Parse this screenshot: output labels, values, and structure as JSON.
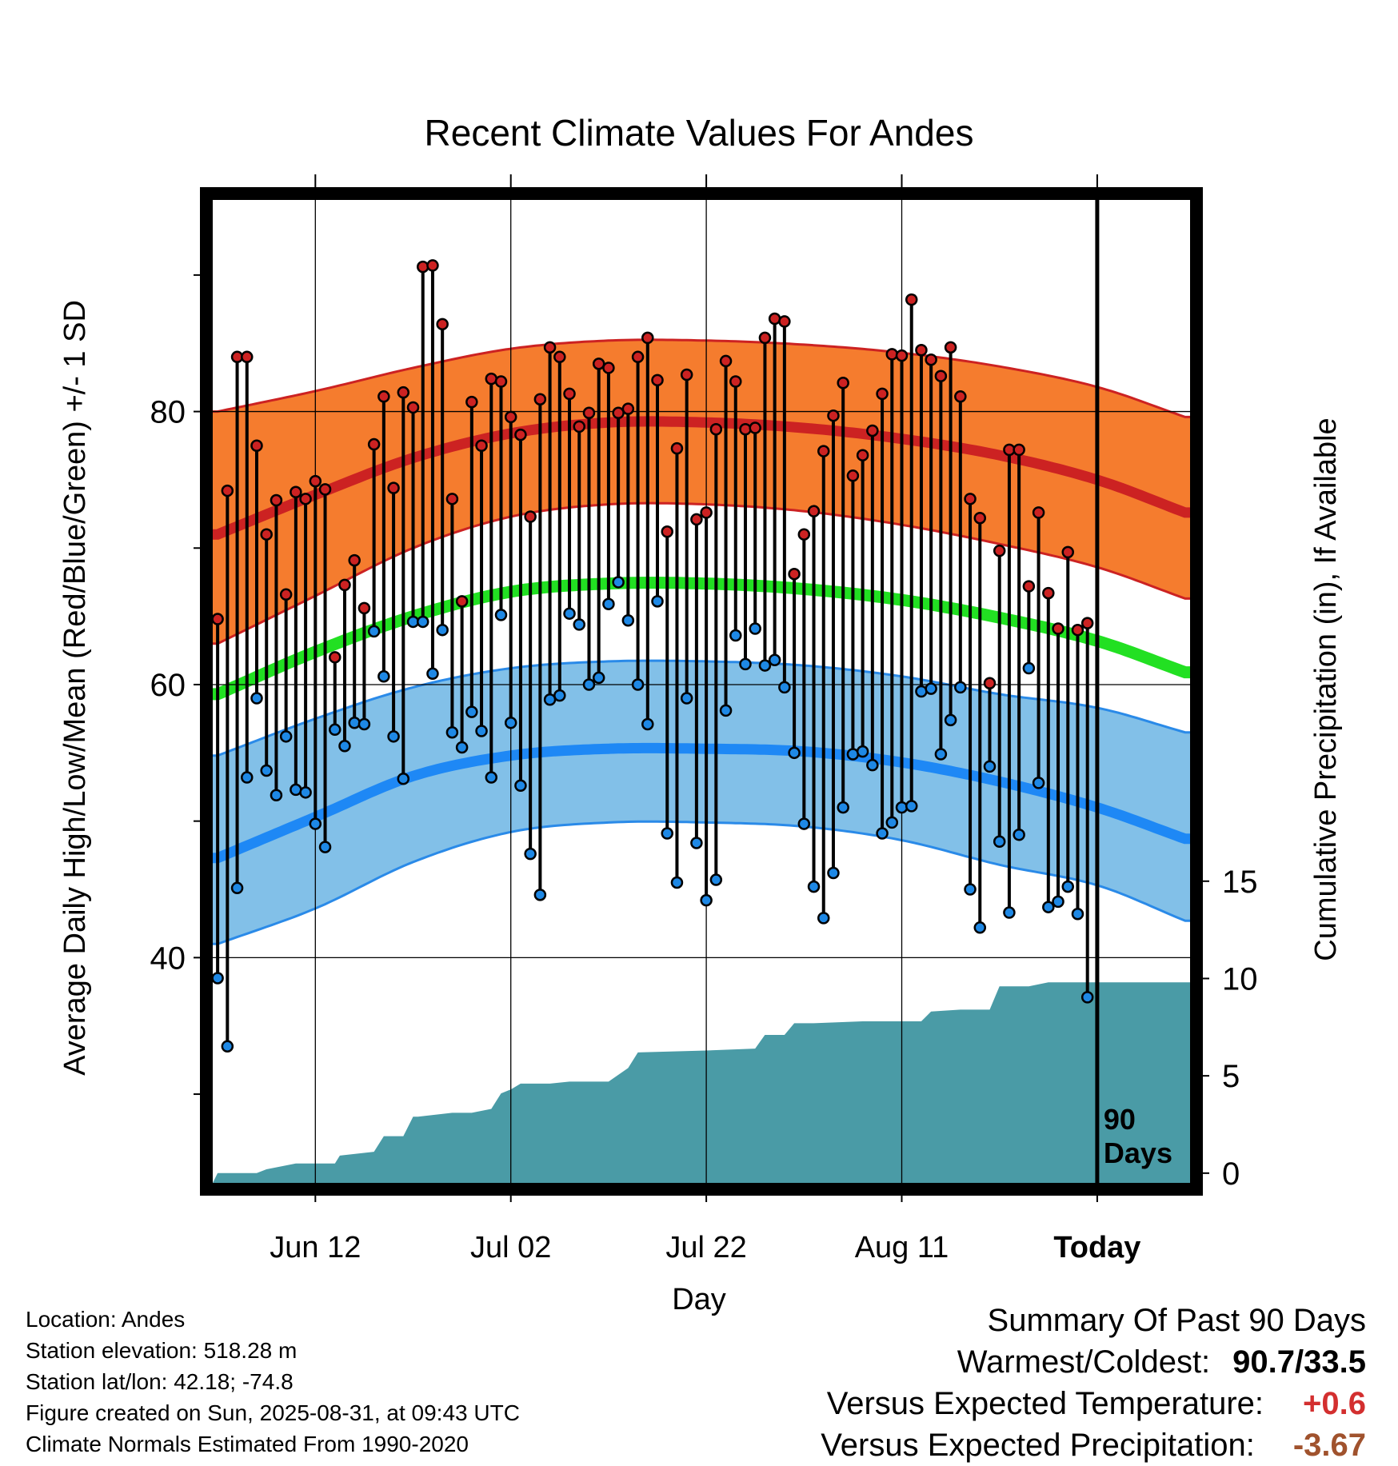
{
  "chart_data": {
    "type": "line",
    "title": "Recent Climate Values For Andes",
    "xlabel": "Day",
    "ylabel": "Average Daily High/Low/Mean (Red/Blue/Green) +/- 1 SD",
    "ylabel_right": "Cumulative Precipitation (in), If Available",
    "x_tick_labels": [
      "Jun 12",
      "Jul 02",
      "Jul 22",
      "Aug 11",
      "Today"
    ],
    "x_ticks_day_index": [
      10,
      30,
      50,
      70,
      90
    ],
    "xlim": [
      -0.5,
      99.5
    ],
    "ylim": [
      23.5,
      95.5
    ],
    "y_ticks_labeled": [
      40,
      60,
      80
    ],
    "y_ticks_minor": [
      30,
      50,
      70,
      90
    ],
    "y2lim": [
      -0.5,
      50
    ],
    "y2_ticks": [
      0,
      5,
      10,
      15
    ],
    "grid": true,
    "today_marker": "90\nDays",
    "normals": {
      "days": [
        0,
        10,
        20,
        30,
        40,
        50,
        60,
        70,
        80,
        90,
        99
      ],
      "high_mean": [
        71.0,
        73.9,
        76.6,
        78.4,
        79.2,
        79.2,
        78.8,
        78.0,
        76.8,
        75.0,
        72.6
      ],
      "high_upper": [
        80.0,
        81.5,
        83.2,
        84.6,
        85.2,
        85.2,
        84.9,
        84.3,
        83.3,
        81.8,
        79.6
      ],
      "high_lower": [
        63.0,
        66.5,
        70.0,
        72.3,
        73.2,
        73.2,
        72.7,
        71.7,
        70.3,
        68.6,
        66.3
      ],
      "mean": [
        59.3,
        62.4,
        65.0,
        66.8,
        67.4,
        67.4,
        67.0,
        66.2,
        64.9,
        63.2,
        60.9
      ],
      "low_mean": [
        47.3,
        50.3,
        53.3,
        54.8,
        55.3,
        55.3,
        55.1,
        54.3,
        52.9,
        51.0,
        48.7
      ],
      "low_upper": [
        54.8,
        57.5,
        59.8,
        61.2,
        61.7,
        61.7,
        61.4,
        60.6,
        59.3,
        58.3,
        56.5
      ],
      "low_lower": [
        41.0,
        43.6,
        47.0,
        49.2,
        49.9,
        49.9,
        49.6,
        48.6,
        46.8,
        45.3,
        42.7
      ]
    },
    "series": [
      {
        "name": "High",
        "color": "#cc2222",
        "values": [
          64.8,
          74.2,
          84.0,
          84.0,
          77.5,
          71.0,
          73.5,
          66.6,
          74.1,
          73.6,
          74.9,
          74.3,
          62.0,
          67.3,
          69.1,
          65.6,
          77.6,
          81.1,
          74.4,
          81.4,
          80.3,
          90.6,
          90.7,
          86.4,
          73.6,
          66.1,
          80.7,
          77.5,
          82.4,
          82.2,
          79.6,
          78.3,
          72.3,
          80.9,
          84.7,
          84.0,
          81.3,
          78.9,
          79.9,
          83.5,
          83.2,
          79.9,
          80.2,
          84.0,
          85.4,
          82.3,
          71.2,
          77.3,
          82.7,
          72.1,
          72.6,
          78.7,
          83.7,
          82.2,
          78.7,
          78.8,
          85.4,
          86.8,
          86.6,
          68.1,
          71.0,
          72.7,
          77.1,
          79.7,
          82.1,
          75.3,
          76.8,
          78.6,
          81.3,
          84.2,
          84.1,
          88.2,
          84.5,
          83.8,
          82.6,
          84.7,
          81.1,
          73.6,
          72.2,
          60.1,
          69.8,
          77.2,
          77.2,
          67.2,
          72.6,
          66.7,
          64.1,
          69.7,
          64.0,
          64.5
        ]
      },
      {
        "name": "Low",
        "color": "#1e88e5",
        "values": [
          38.5,
          33.5,
          45.1,
          53.2,
          59.0,
          53.7,
          51.9,
          56.2,
          52.3,
          52.1,
          49.8,
          48.1,
          56.7,
          55.5,
          57.2,
          57.1,
          63.9,
          60.6,
          56.2,
          53.1,
          64.6,
          64.6,
          60.8,
          64.0,
          56.5,
          55.4,
          58.0,
          56.6,
          53.2,
          65.1,
          57.2,
          52.6,
          47.6,
          44.6,
          58.9,
          59.2,
          65.2,
          64.4,
          60.0,
          60.5,
          65.9,
          67.5,
          64.7,
          60.0,
          57.1,
          66.1,
          49.1,
          45.5,
          59.0,
          48.4,
          44.2,
          45.7,
          58.1,
          63.6,
          61.5,
          64.1,
          61.4,
          61.8,
          59.8,
          55.0,
          49.8,
          45.2,
          42.9,
          46.2,
          51.0,
          54.9,
          55.1,
          54.1,
          49.1,
          49.9,
          51.0,
          51.1,
          59.5,
          59.7,
          54.9,
          57.4,
          59.8,
          45.0,
          42.2,
          54.0,
          48.5,
          43.3,
          49.0,
          61.2,
          52.8,
          43.7,
          44.1,
          45.2,
          43.2,
          37.1
        ]
      },
      {
        "name": "Cumulative Precipitation",
        "color": "#4a9ba6",
        "days": [
          0,
          4,
          5,
          8,
          12,
          12.5,
          16,
          17,
          19,
          20,
          20.5,
          24,
          26,
          28,
          29,
          30,
          31,
          34,
          36,
          40,
          42,
          43,
          50,
          55,
          56,
          58,
          59,
          61,
          66,
          72,
          73,
          76,
          79,
          80,
          81,
          83,
          84,
          85,
          99
        ],
        "values": [
          0,
          0,
          0.2,
          0.5,
          0.5,
          0.9,
          1.1,
          1.9,
          1.9,
          2.9,
          2.9,
          3.1,
          3.1,
          3.3,
          4.1,
          4.3,
          4.6,
          4.6,
          4.7,
          4.7,
          5.4,
          6.2,
          6.3,
          6.4,
          7.1,
          7.1,
          7.7,
          7.7,
          7.8,
          7.8,
          8.3,
          8.4,
          8.4,
          9.6,
          9.6,
          9.6,
          9.7,
          9.8,
          9.8
        ]
      }
    ]
  },
  "info": {
    "location": "Location: Andes",
    "elevation": "Station elevation: 518.28 m",
    "latlon": "Station lat/lon: 42.18; -74.8",
    "created": "Figure created on Sun, 2025-08-31, at 09:43 UTC",
    "normals": "Climate Normals Estimated From 1990-2020"
  },
  "summary": {
    "title": "Summary Of Past 90 Days",
    "warmest_label": "Warmest/Coldest:",
    "warmest_value": "90.7/33.5",
    "temp_label": "Versus Expected Temperature:",
    "temp_value": "+0.6",
    "temp_color": "#d32f2f",
    "precip_label": "Versus Expected Precipitation:",
    "precip_value": "-3.67",
    "precip_color": "#a0522d"
  },
  "colors": {
    "high_band": "#f57c2e",
    "high_band_edge": "#cc2222",
    "high_line": "#cc2222",
    "mean_line": "#22e022",
    "low_band": "#82c0e8",
    "low_band_edge": "#2a8ae8",
    "low_line": "#1e88f5",
    "precip_fill": "#4a9ba6",
    "high_dot": "#cc2222",
    "low_dot": "#1e88e5"
  }
}
